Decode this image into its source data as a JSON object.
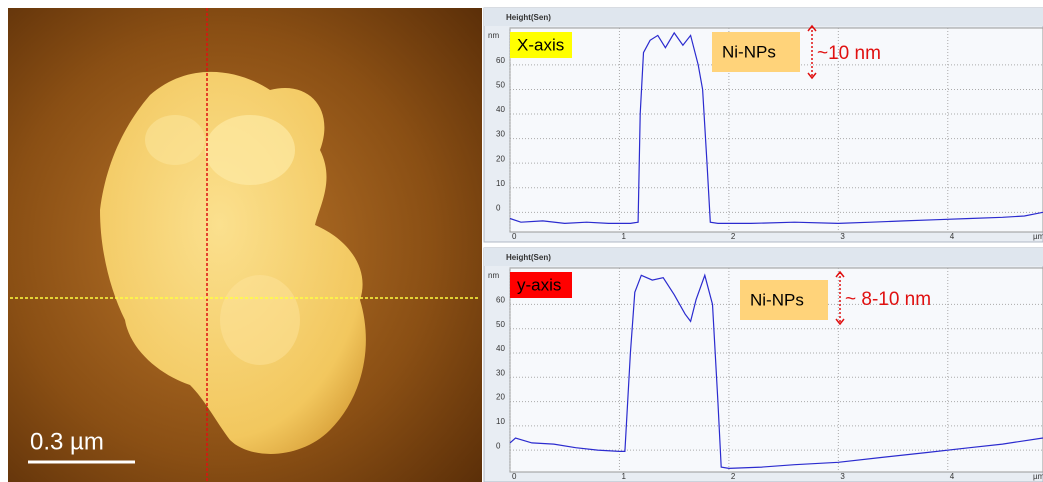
{
  "image": {
    "scale_bar": "0.3 µm"
  },
  "chart_data": [
    {
      "type": "line",
      "header": "Height(Sen)",
      "y_unit": "nm",
      "x_unit": "µm",
      "tag": "X-axis",
      "tag_color": "#ffff00",
      "label": "Ni-NPs",
      "annotation": "~10 nm",
      "x": [
        0,
        0.1,
        0.3,
        0.5,
        0.7,
        0.9,
        1.1,
        1.17,
        1.19,
        1.22,
        1.28,
        1.35,
        1.42,
        1.5,
        1.58,
        1.65,
        1.72,
        1.76,
        1.8,
        1.83,
        1.9,
        2.2,
        2.6,
        3.0,
        3.3,
        3.6,
        3.9,
        4.2,
        4.5,
        4.7,
        4.87
      ],
      "series": [
        {
          "color": "#2b2bcf",
          "values": [
            -2.5,
            -4,
            -3.5,
            -4.5,
            -4,
            -4.5,
            -4.5,
            -4,
            40,
            65,
            70,
            72,
            67,
            73,
            68,
            72,
            60,
            50,
            20,
            -4,
            -4.5,
            -4.5,
            -4,
            -4.5,
            -4,
            -3.5,
            -3,
            -2.5,
            -2,
            -1.5,
            0
          ]
        }
      ],
      "xlim": [
        0,
        4.87
      ],
      "xticks": [
        0,
        1,
        2,
        3,
        4
      ],
      "ylim": [
        -8,
        75
      ],
      "yticks": [
        0,
        10,
        20,
        30,
        40,
        50,
        60
      ],
      "grid": true
    },
    {
      "type": "line",
      "header": "Height(Sen)",
      "y_unit": "nm",
      "x_unit": "µm",
      "tag": "y-axis",
      "tag_color": "#ff0000",
      "label": "Ni-NPs",
      "annotation": "~ 8-10 nm",
      "x": [
        0,
        0.05,
        0.2,
        0.4,
        0.6,
        0.8,
        1.0,
        1.05,
        1.1,
        1.14,
        1.2,
        1.3,
        1.4,
        1.5,
        1.6,
        1.65,
        1.7,
        1.78,
        1.85,
        1.9,
        1.93,
        2.0,
        2.3,
        2.6,
        3.0,
        3.4,
        3.8,
        4.2,
        4.5,
        4.87
      ],
      "series": [
        {
          "color": "#2b2bcf",
          "values": [
            3,
            5,
            3,
            2.5,
            1,
            0,
            -0.5,
            -0.5,
            40,
            65,
            72,
            70,
            71,
            64,
            56,
            53,
            62,
            72,
            60,
            20,
            -7,
            -7.5,
            -7,
            -6,
            -5,
            -3,
            -1,
            1,
            2.5,
            5
          ]
        }
      ],
      "xlim": [
        0,
        4.87
      ],
      "xticks": [
        0,
        1,
        2,
        3,
        4
      ],
      "ylim": [
        -9,
        75
      ],
      "yticks": [
        0,
        10,
        20,
        30,
        40,
        50,
        60
      ],
      "grid": true
    }
  ]
}
